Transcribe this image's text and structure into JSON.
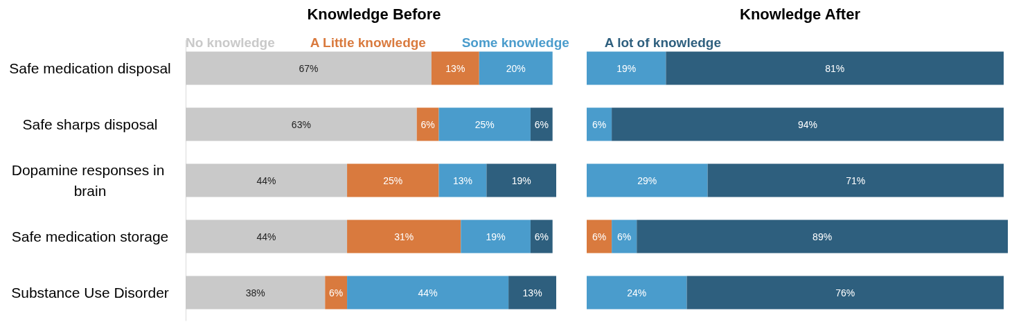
{
  "chart_data": [
    {
      "type": "bar",
      "orientation": "horizontal",
      "stacked": true,
      "title": "Knowledge Before",
      "legend": "top",
      "tick_labels": "y",
      "categories": [
        "Safe medication disposal",
        "Safe sharps disposal",
        "Dopamine responses in brain",
        "Safe medication storage",
        "Substance Use Disorder"
      ],
      "series": [
        {
          "name": "No knowledge",
          "color": "#c9c9c9",
          "values": [
            67,
            63,
            44,
            44,
            38
          ],
          "value_labels": [
            "67%",
            "63%",
            "44%",
            "44%",
            "38%"
          ]
        },
        {
          "name": "A Little knowledge",
          "color": "#d97a3e",
          "values": [
            13,
            6,
            25,
            31,
            6
          ],
          "value_labels": [
            "13%",
            "6%",
            "25%",
            "31%",
            "6%"
          ]
        },
        {
          "name": "Some knowledge",
          "color": "#4a9ccc",
          "values": [
            20,
            25,
            13,
            19,
            44
          ],
          "value_labels": [
            "20%",
            "25%",
            "13%",
            "19%",
            "44%"
          ]
        },
        {
          "name": "A lot of knowledge",
          "color": "#2e5f7e",
          "values": [
            null,
            6,
            19,
            6,
            13
          ],
          "value_labels": [
            null,
            "6%",
            "19%",
            "6%",
            "13%"
          ]
        }
      ]
    },
    {
      "type": "bar",
      "orientation": "horizontal",
      "stacked": true,
      "title": "Knowledge After",
      "tick_labels": false,
      "categories": [
        null,
        null,
        null,
        null,
        null
      ],
      "series": [
        {
          "color": "#d97a3e",
          "values": [
            null,
            null,
            null,
            6,
            null
          ],
          "value_labels": [
            null,
            null,
            null,
            "6%",
            null
          ]
        },
        {
          "color": "#4a9ccc",
          "values": [
            19,
            6,
            29,
            6,
            24
          ],
          "value_labels": [
            "19%",
            "6%",
            "29%",
            "6%",
            "24%"
          ]
        },
        {
          "color": "#2e5f7e",
          "values": [
            81,
            94,
            71,
            89,
            76
          ],
          "value_labels": [
            "81%",
            "94%",
            "71%",
            "89%",
            "76%"
          ]
        }
      ]
    }
  ]
}
